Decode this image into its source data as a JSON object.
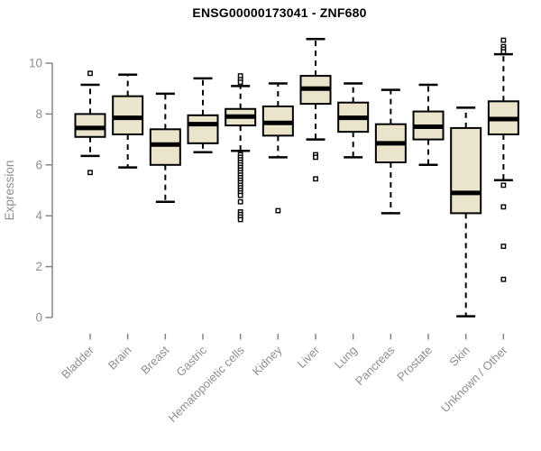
{
  "title": "ENSG00000173041 - ZNF680",
  "colors": {
    "background": "#ffffff",
    "box_fill": "#EAE4CB",
    "box_stroke": "#000000",
    "median": "#000000",
    "whisker": "#000000",
    "outlier_stroke": "#000000",
    "outlier_fill": "#ffffff",
    "axis": "#858585",
    "label_text": "#8f8f8f",
    "title_text": "#000000"
  },
  "chart_data": {
    "type": "boxplot",
    "title": "ENSG00000173041 - ZNF680",
    "xlabel": "",
    "ylabel": "Expression",
    "ylim": [
      0,
      11
    ],
    "y_ticks": [
      0,
      2,
      4,
      6,
      8,
      10
    ],
    "grid": false,
    "legend": false,
    "categories": [
      "Bladder",
      "Brain",
      "Breast",
      "Gastric",
      "Hematopoietic cells",
      "Kidney",
      "Liver",
      "Lung",
      "Pancreas",
      "Prostate",
      "Skin",
      "Unknown / Other"
    ],
    "series": [
      {
        "name": "Bladder",
        "whisker_low": 6.35,
        "q1": 7.1,
        "median": 7.45,
        "q3": 8.0,
        "whisker_high": 9.15,
        "outliers": [
          9.6,
          5.7
        ]
      },
      {
        "name": "Brain",
        "whisker_low": 5.9,
        "q1": 7.2,
        "median": 7.85,
        "q3": 8.7,
        "whisker_high": 9.55,
        "outliers": []
      },
      {
        "name": "Breast",
        "whisker_low": 4.55,
        "q1": 6.0,
        "median": 6.8,
        "q3": 7.4,
        "whisker_high": 8.8,
        "outliers": []
      },
      {
        "name": "Gastric",
        "whisker_low": 6.5,
        "q1": 6.85,
        "median": 7.6,
        "q3": 7.95,
        "whisker_high": 9.4,
        "outliers": []
      },
      {
        "name": "Hematopoietic cells",
        "whisker_low": 6.55,
        "q1": 7.55,
        "median": 7.9,
        "q3": 8.2,
        "whisker_high": 9.1,
        "outliers": [
          9.5,
          9.35,
          9.25,
          6.4,
          6.3,
          6.2,
          6.1,
          6.0,
          5.9,
          5.8,
          5.7,
          5.6,
          5.5,
          5.4,
          5.3,
          5.2,
          5.1,
          5.0,
          4.9,
          4.8,
          4.55,
          4.15,
          4.05,
          3.95,
          3.85
        ]
      },
      {
        "name": "Kidney",
        "whisker_low": 6.3,
        "q1": 7.15,
        "median": 7.65,
        "q3": 8.3,
        "whisker_high": 9.2,
        "outliers": [
          4.2
        ]
      },
      {
        "name": "Liver",
        "whisker_low": 7.0,
        "q1": 8.4,
        "median": 9.0,
        "q3": 9.5,
        "whisker_high": 10.95,
        "outliers": [
          6.4,
          6.3,
          5.45
        ]
      },
      {
        "name": "Lung",
        "whisker_low": 6.3,
        "q1": 7.3,
        "median": 7.85,
        "q3": 8.45,
        "whisker_high": 9.2,
        "outliers": []
      },
      {
        "name": "Pancreas",
        "whisker_low": 4.1,
        "q1": 6.1,
        "median": 6.85,
        "q3": 7.6,
        "whisker_high": 8.95,
        "outliers": []
      },
      {
        "name": "Prostate",
        "whisker_low": 6.0,
        "q1": 7.0,
        "median": 7.5,
        "q3": 8.1,
        "whisker_high": 9.15,
        "outliers": []
      },
      {
        "name": "Skin",
        "whisker_low": 0.05,
        "q1": 4.1,
        "median": 4.9,
        "q3": 7.45,
        "whisker_high": 8.25,
        "outliers": []
      },
      {
        "name": "Unknown / Other",
        "whisker_low": 5.4,
        "q1": 7.2,
        "median": 7.8,
        "q3": 8.5,
        "whisker_high": 10.35,
        "outliers": [
          10.9,
          10.65,
          10.55,
          10.45,
          5.2,
          4.35,
          2.8,
          1.5
        ]
      }
    ]
  }
}
